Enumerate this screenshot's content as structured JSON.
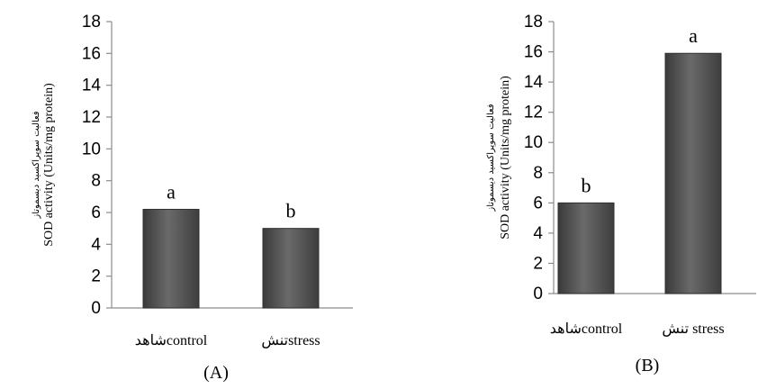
{
  "chart_data": [
    {
      "type": "bar",
      "panel_label": "(A)",
      "ylabel_fa": "فعالیت سوپراکسید دیسموتاز",
      "ylabel": "SOD activity (Units/mg protein)",
      "ylim": [
        0,
        18
      ],
      "yticks": [
        "0",
        "2",
        "4",
        "6",
        "8",
        "10",
        "12",
        "14",
        "16",
        "18"
      ],
      "categories": [
        "شاهدcontrol",
        "تنشstress"
      ],
      "values": [
        6.2,
        5.0
      ],
      "bar_labels": [
        "a",
        "b"
      ],
      "bar_color": "#555555",
      "grid": false
    },
    {
      "type": "bar",
      "panel_label": "(B)",
      "ylabel_fa": "فعالیت سوپراکسید دیسموتاز",
      "ylabel": "SOD activity (Units/mg protein)",
      "ylim": [
        0,
        18
      ],
      "yticks": [
        "0",
        "2",
        "4",
        "6",
        "8",
        "10",
        "12",
        "14",
        "16",
        "18"
      ],
      "categories": [
        "شاهدcontrol",
        "تنش stress"
      ],
      "values": [
        6.0,
        15.9
      ],
      "bar_labels": [
        "b",
        "a"
      ],
      "bar_color": "#555555",
      "grid": false
    }
  ]
}
